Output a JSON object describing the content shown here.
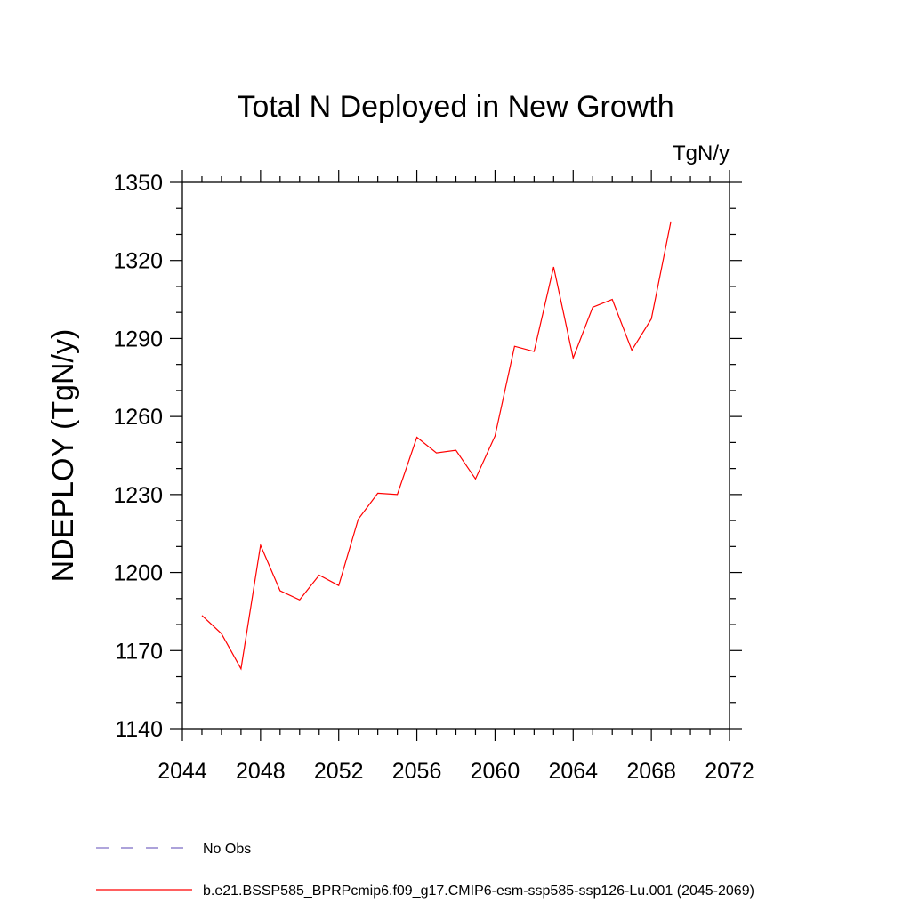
{
  "chart_data": {
    "type": "line",
    "title": "Total N Deployed in New Growth",
    "units": "TgN/y",
    "ylabel": "NDEPLOY  (TgN/y)",
    "xlabel": "",
    "xlim": [
      2044,
      2072
    ],
    "ylim": [
      1140,
      1350
    ],
    "xticks": [
      "2044",
      "2048",
      "2052",
      "2056",
      "2060",
      "2064",
      "2068",
      "2072"
    ],
    "yticks": [
      "1140",
      "1170",
      "1200",
      "1230",
      "1260",
      "1290",
      "1320",
      "1350"
    ],
    "x": [
      2045,
      2046,
      2047,
      2048,
      2049,
      2050,
      2051,
      2052,
      2053,
      2054,
      2055,
      2056,
      2057,
      2058,
      2059,
      2060,
      2061,
      2062,
      2063,
      2064,
      2065,
      2066,
      2067,
      2068,
      2069
    ],
    "series": [
      {
        "name": "b.e21.BSSP585_BPRPcmip6.f09_g17.CMIP6-esm-ssp585-ssp126-Lu.001 (2045-2069)",
        "color": "#ff0000",
        "values": [
          1183.5,
          1176.5,
          1163,
          1210.5,
          1193,
          1189.5,
          1199,
          1195,
          1220.5,
          1230.5,
          1230,
          1252,
          1246,
          1247,
          1236,
          1252.5,
          1287,
          1285,
          1317.5,
          1282.5,
          1302,
          1305,
          1285.5,
          1297.5,
          1335
        ]
      }
    ],
    "legend": [
      {
        "label": "No Obs",
        "color": "#7b6bc4",
        "style": "dashed"
      },
      {
        "label": "b.e21.BSSP585_BPRPcmip6.f09_g17.CMIP6-esm-ssp585-ssp126-Lu.001 (2045-2069)",
        "color": "#ff0000",
        "style": "solid"
      }
    ],
    "legend_position": "bottom-left",
    "grid": false
  }
}
